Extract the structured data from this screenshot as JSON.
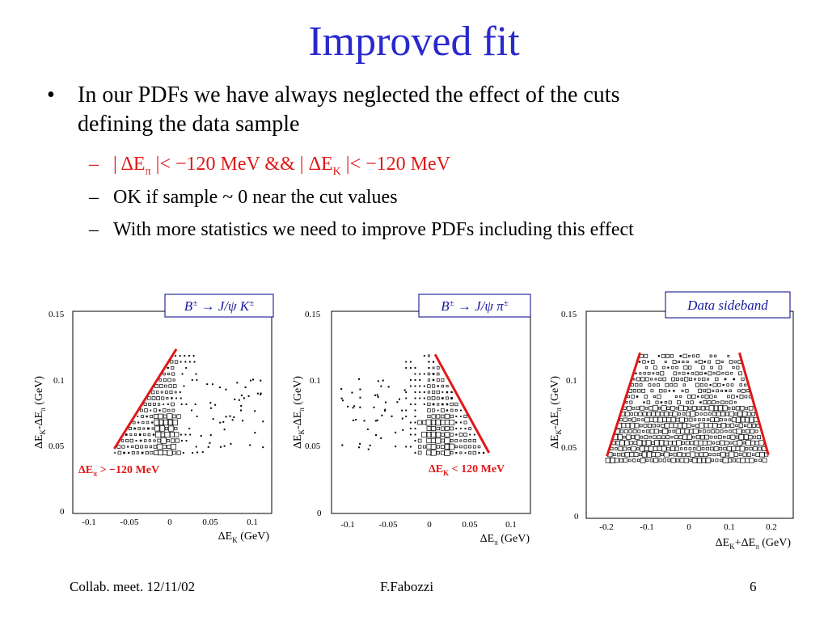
{
  "slide": {
    "title": "Improved fit",
    "bullet": {
      "line1": "In our PDFs we have always neglected the effect of the cuts",
      "line2": "defining the data sample"
    },
    "subs": [
      {
        "parts": [
          "| ΔE",
          "π",
          " |< −120 MeV && | ΔE",
          "K",
          " |< −120 MeV"
        ]
      },
      {
        "text": "OK if sample ~ 0 near the cut values"
      },
      {
        "text": "With more statistics we need to improve PDFs including this effect"
      }
    ],
    "footer": {
      "left": "Collab. meet. 12/11/02",
      "center": "F.Fabozzi",
      "right": "6"
    }
  },
  "chart_data": [
    {
      "type": "scatter",
      "label_box": [
        "B",
        "±",
        " → J/ψ K",
        "±"
      ],
      "xlabel": [
        "ΔE",
        "K",
        " (GeV)"
      ],
      "ylabel": [
        "ΔE",
        "K",
        "-ΔE",
        "π",
        " (GeV)"
      ],
      "x_ticks": [
        "-0.1",
        "-0.05",
        "0",
        "0.05",
        "0.1"
      ],
      "y_ticks": [
        "0",
        "0.05",
        "0.1",
        "0.15"
      ],
      "xlim": [
        -0.12,
        0.12
      ],
      "ylim": [
        0,
        0.15
      ],
      "cut_label": [
        "ΔE",
        "π",
        " > −120 MeV"
      ],
      "cut_line": [
        [
          -0.07,
          0.048
        ],
        [
          0.005,
          0.122
        ]
      ]
    },
    {
      "type": "scatter",
      "label_box": [
        "B",
        "±",
        " → J/ψ π",
        "±"
      ],
      "xlabel": [
        "ΔE",
        "π",
        " (GeV)"
      ],
      "ylabel": [
        "ΔE",
        "K",
        "-ΔE",
        "π",
        " (GeV)"
      ],
      "x_ticks": [
        "-0.1",
        "-0.05",
        "0",
        "0.05",
        "0.1"
      ],
      "y_ticks": [
        "0",
        "0.05",
        "0.1",
        "0.15"
      ],
      "xlim": [
        -0.12,
        0.12
      ],
      "ylim": [
        0,
        0.15
      ],
      "cut_label": [
        "ΔE",
        "K",
        " < 120 MeV"
      ],
      "cut_line": [
        [
          0.005,
          0.118
        ],
        [
          0.07,
          0.045
        ]
      ]
    },
    {
      "type": "scatter",
      "label_box": [
        "Data sideband"
      ],
      "xlabel": [
        "ΔE",
        "K",
        "+ΔE",
        "π",
        " (GeV)"
      ],
      "ylabel": [
        "ΔE",
        "K",
        "-ΔE",
        "π",
        " (GeV)"
      ],
      "x_ticks": [
        "-0.2",
        "-0.1",
        "0",
        "0.1",
        "0.2"
      ],
      "y_ticks": [
        "0",
        "0.05",
        "0.1",
        "0.15"
      ],
      "xlim": [
        -0.25,
        0.25
      ],
      "ylim": [
        0,
        0.15
      ],
      "cut_lines": [
        [
          [
            -0.2,
            0.045
          ],
          [
            -0.12,
            0.12
          ]
        ],
        [
          [
            0.12,
            0.12
          ],
          [
            0.19,
            0.046
          ]
        ]
      ]
    }
  ]
}
